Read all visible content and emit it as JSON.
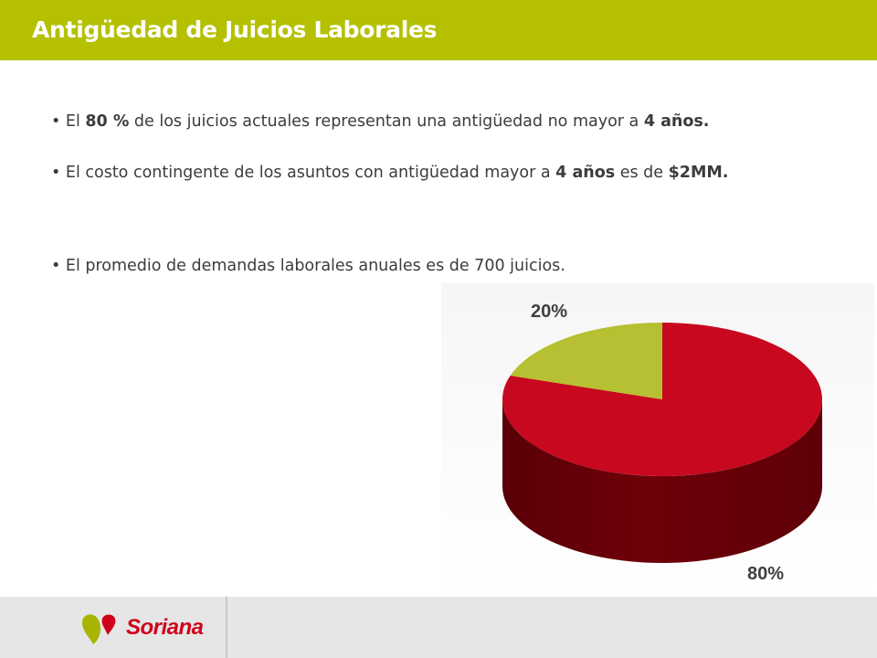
{
  "header": {
    "title": "Antigüedad de Juicios Laborales"
  },
  "bullets": [
    {
      "parts": [
        {
          "t": "• El ",
          "b": false
        },
        {
          "t": "80 %",
          "b": true
        },
        {
          "t": " de los juicios actuales representan una antigüedad no mayor a ",
          "b": false
        },
        {
          "t": "4 años.",
          "b": true
        }
      ]
    },
    {
      "parts": [
        {
          "t": "• El costo contingente de los asuntos con antigüedad mayor a ",
          "b": false
        },
        {
          "t": "4 años",
          "b": true
        },
        {
          "t": " es de ",
          "b": false
        },
        {
          "t": "$2MM.",
          "b": true
        }
      ]
    },
    {
      "parts": [
        {
          "t": "• El promedio de demandas laborales anuales es de 700 juicios.",
          "b": false
        }
      ]
    }
  ],
  "chart_data": {
    "type": "pie",
    "style": "3d",
    "slices": [
      {
        "label": "80%",
        "value": 80,
        "color": "#c8081e",
        "side_color": "#6e0009"
      },
      {
        "label": "20%",
        "value": 20,
        "color": "#b6c032",
        "side_color": "#7c8420"
      }
    ]
  },
  "footer": {
    "brand": "Soriana",
    "brand_color": "#d0021b",
    "leaf_color": "#a8b400"
  }
}
